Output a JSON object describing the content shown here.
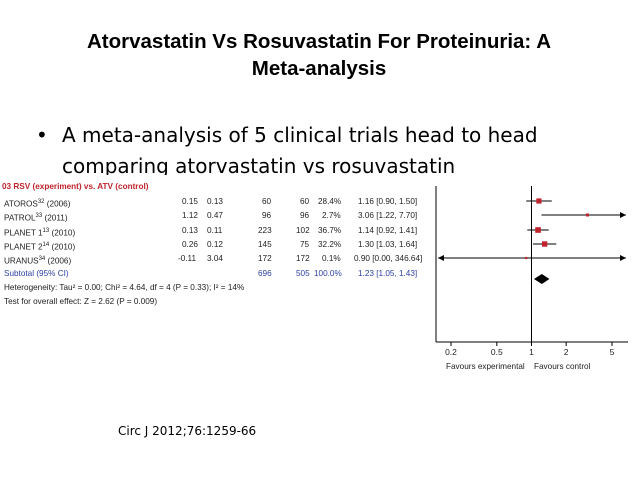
{
  "slide": {
    "title_line1": "Atorvastatin Vs Rosuvastatin For Proteinuria: A",
    "title_line2": "Meta-analysis",
    "bullet_symbol": "•",
    "bullet_text": "A meta-analysis of 5 clinical trials head to head comparing atorvastatin vs rosuvastatin",
    "citation": "Circ J 2012;76:1259-66"
  },
  "forest": {
    "header": "03 RSV (experiment) vs. ATV (control)",
    "rows": [
      {
        "study": "ATOROS",
        "sup": "32",
        "year": "(2006)",
        "mean": "0.15",
        "se": "0.13",
        "n_exp": "60",
        "n_ctl": "60",
        "weight": "28.4%",
        "ci": "1.16 [0.90, 1.50]"
      },
      {
        "study": "PATROL",
        "sup": "33",
        "year": "(2011)",
        "mean": "1.12",
        "se": "0.47",
        "n_exp": "96",
        "n_ctl": "96",
        "weight": "2.7%",
        "ci": "3.06 [1.22, 7.70]"
      },
      {
        "study": "PLANET 1",
        "sup": "13",
        "year": "(2010)",
        "mean": "0.13",
        "se": "0.11",
        "n_exp": "223",
        "n_ctl": "102",
        "weight": "36.7%",
        "ci": "1.14 [0.92, 1.41]"
      },
      {
        "study": "PLANET 2",
        "sup": "14",
        "year": "(2010)",
        "mean": "0.26",
        "se": "0.12",
        "n_exp": "145",
        "n_ctl": "75",
        "weight": "32.2%",
        "ci": "1.30 [1.03, 1.64]"
      },
      {
        "study": "URANUS",
        "sup": "34",
        "year": "(2006)",
        "mean": "-0.11",
        "se": "3.04",
        "n_exp": "172",
        "n_ctl": "172",
        "weight": "0.1%",
        "ci": "0.90 [0.00, 346.64]"
      }
    ],
    "subtotal": {
      "label": "Subtotal (95% CI)",
      "n_exp": "696",
      "n_ctl": "505",
      "weight": "100.0%",
      "ci": "1.23 [1.05, 1.43]"
    },
    "heterogeneity": "Heterogeneity: Tau² = 0.00; Chi² = 4.64, df = 4 (P = 0.33); I² = 14%",
    "overall_effect": "Test for overall effect: Z = 2.62 (P = 0.009)",
    "axis_ticks": [
      "0.2",
      "0.5",
      "1",
      "2",
      "5"
    ],
    "favours_left": "Favours experimental",
    "favours_right": "Favours control"
  },
  "chart_data": {
    "type": "forest",
    "scale": "log",
    "xlim": [
      0.2,
      5
    ],
    "ticks": [
      0.2,
      0.5,
      1,
      2,
      5
    ],
    "studies": [
      {
        "name": "ATOROS",
        "estimate": 1.16,
        "lower": 0.9,
        "upper": 1.5,
        "weight": 28.4
      },
      {
        "name": "PATROL",
        "estimate": 3.06,
        "lower": 1.22,
        "upper": 7.7,
        "weight": 2.7
      },
      {
        "name": "PLANET 1",
        "estimate": 1.14,
        "lower": 0.92,
        "upper": 1.41,
        "weight": 36.7
      },
      {
        "name": "PLANET 2",
        "estimate": 1.3,
        "lower": 1.03,
        "upper": 1.64,
        "weight": 32.2
      },
      {
        "name": "URANUS",
        "estimate": 0.9,
        "lower": 0.0,
        "upper": 346.64,
        "weight": 0.1
      }
    ],
    "pooled": {
      "estimate": 1.23,
      "lower": 1.05,
      "upper": 1.43
    },
    "colors": {
      "square": "#c0232b",
      "diamond": "#000000",
      "line": "#000000"
    }
  }
}
